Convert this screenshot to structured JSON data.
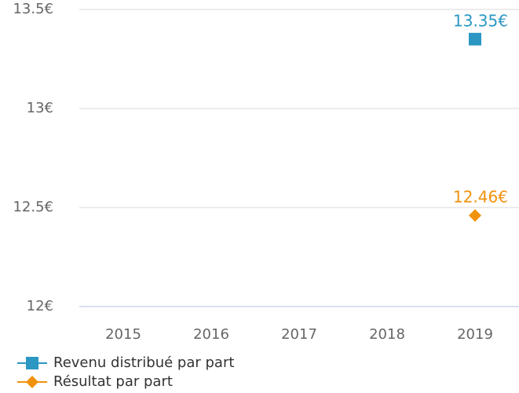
{
  "chart_data": {
    "type": "line",
    "categories": [
      "2015",
      "2016",
      "2017",
      "2018",
      "2019"
    ],
    "series": [
      {
        "name": "Revenu distribué par part",
        "color": "#2b97c2",
        "marker": "square",
        "values": [
          null,
          null,
          null,
          null,
          13.35
        ],
        "value_labels": [
          null,
          null,
          null,
          null,
          "13.35€"
        ]
      },
      {
        "name": "Résultat par part",
        "color": "#f0920c",
        "marker": "diamond",
        "values": [
          null,
          null,
          null,
          null,
          12.46
        ],
        "value_labels": [
          null,
          null,
          null,
          null,
          "12.46€"
        ]
      }
    ],
    "ylim": [
      12,
      13.5
    ],
    "yticks": [
      {
        "value": 12,
        "label": "12€"
      },
      {
        "value": 12.5,
        "label": "12.5€"
      },
      {
        "value": 13,
        "label": "13€"
      },
      {
        "value": 13.5,
        "label": "13.5€"
      }
    ],
    "grid": true,
    "legend": "bottom-left"
  }
}
